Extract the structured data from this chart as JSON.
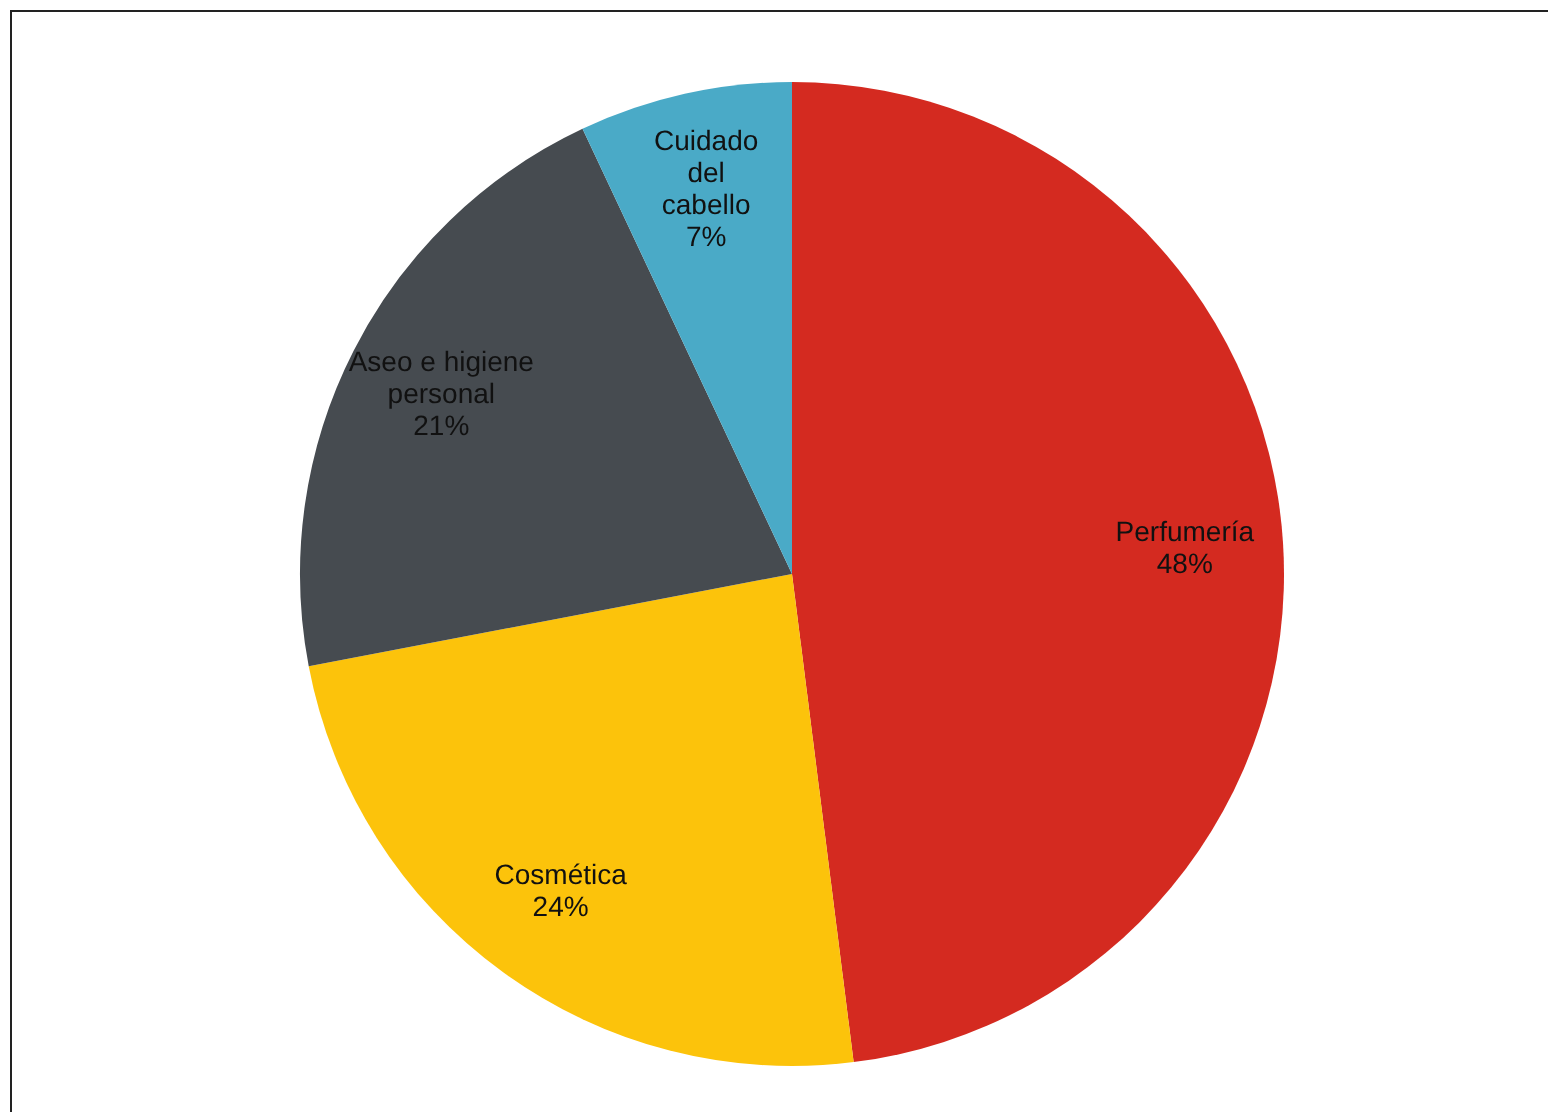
{
  "chart_data": {
    "type": "pie",
    "categories": [
      "Perfumería",
      "Cosmética",
      "Aseo e higiene personal",
      "Cuidado del cabello"
    ],
    "values": [
      48,
      24,
      21,
      7
    ],
    "colors": [
      "#d42a20",
      "#fcc30b",
      "#464b50",
      "#4aaac7"
    ],
    "value_labels": [
      "48%",
      "24%",
      "21%",
      "7%"
    ],
    "legend": false
  }
}
